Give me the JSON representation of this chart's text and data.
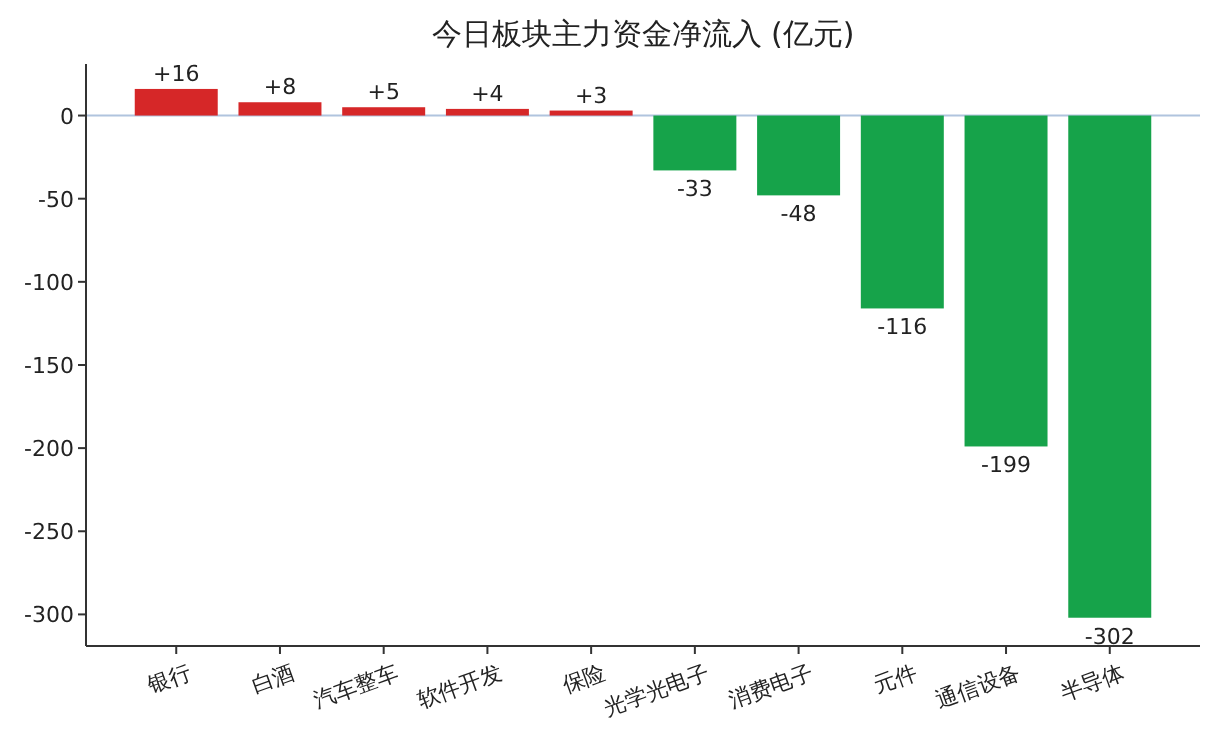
{
  "chart_data": {
    "type": "bar",
    "title": "今日板块主力资金净流入 (亿元)",
    "categories": [
      "银行",
      "白酒",
      "汽车整车",
      "软件开发",
      "保险",
      "光学光电子",
      "消费电子",
      "元件",
      "通信设备",
      "半导体"
    ],
    "values": [
      16,
      8,
      5,
      4,
      3,
      -33,
      -48,
      -116,
      -199,
      -302
    ],
    "colors": [
      "#d62728",
      "#d62728",
      "#d62728",
      "#d62728",
      "#d62728",
      "#16a34a",
      "#16a34a",
      "#16a34a",
      "#16a34a",
      "#16a34a"
    ],
    "value_labels": [
      "+16",
      "+8",
      "+5",
      "+4",
      "+3",
      "-33",
      "-48",
      "-116",
      "-199",
      "-302"
    ],
    "ylim": [
      -319,
      31
    ],
    "yticks": [
      0,
      -50,
      -100,
      -150,
      -200,
      -250,
      -300
    ],
    "ref_lines": [
      {
        "axis": "y",
        "value": 0,
        "color": "#b0c4de"
      }
    ],
    "grid": false
  }
}
